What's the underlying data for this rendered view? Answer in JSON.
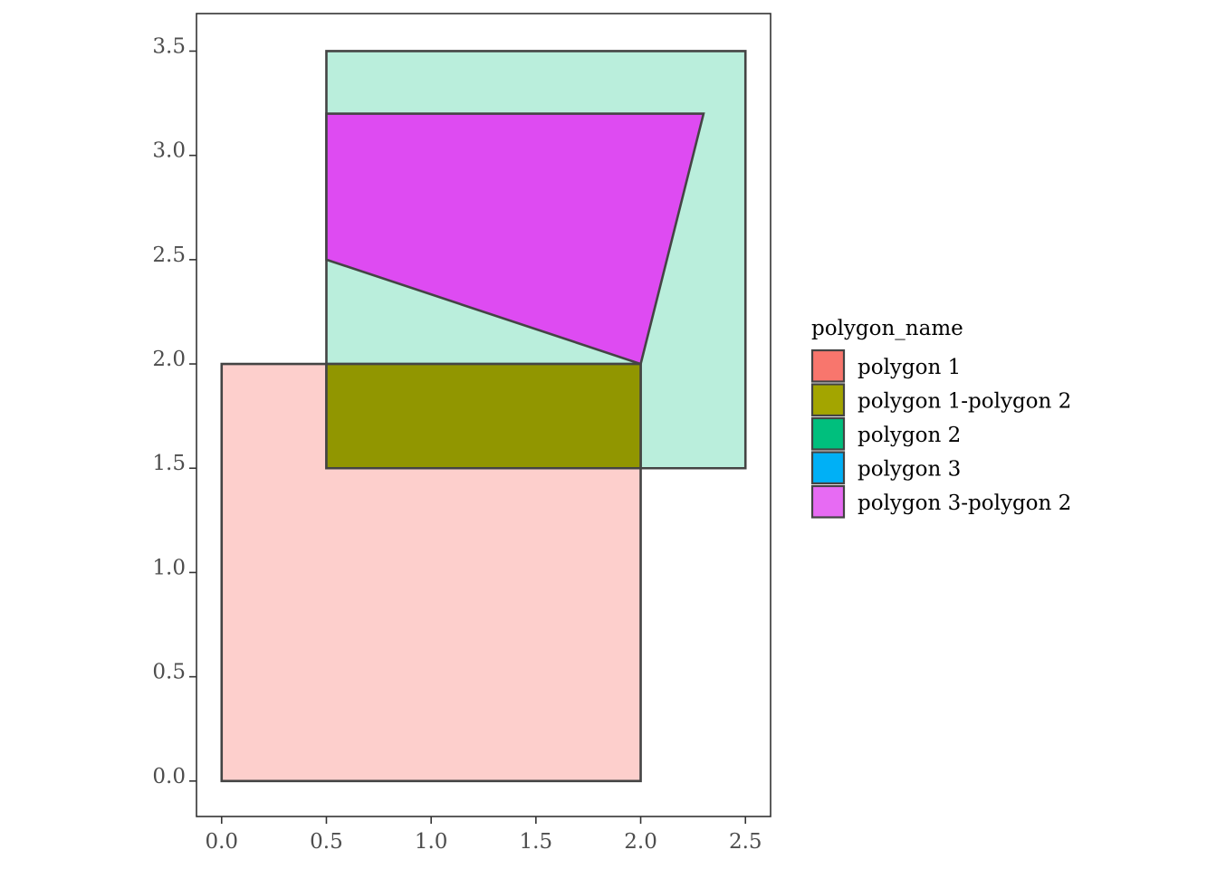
{
  "chart_data": {
    "type": "polygon-map",
    "title": "",
    "xlabel": "",
    "ylabel": "",
    "xlim": [
      -0.12,
      2.62
    ],
    "ylim": [
      -0.17,
      3.68
    ],
    "x_ticks": [
      0.0,
      0.5,
      1.0,
      1.5,
      2.0,
      2.5
    ],
    "x_tick_labels": [
      "0.0",
      "0.5",
      "1.0",
      "1.5",
      "2.0",
      "2.5"
    ],
    "y_ticks": [
      0.0,
      0.5,
      1.0,
      1.5,
      2.0,
      2.5,
      3.0,
      3.5
    ],
    "y_tick_labels": [
      "0.0",
      "0.5",
      "1.0",
      "1.5",
      "2.0",
      "2.5",
      "3.0",
      "3.5"
    ],
    "grid": false,
    "legend": {
      "title": "polygon_name",
      "placement": "right",
      "items": [
        {
          "label": "polygon 1",
          "color": "#F8766D"
        },
        {
          "label": "polygon 1-polygon 2",
          "color": "#A3A500"
        },
        {
          "label": "polygon 2",
          "color": "#00BF7D"
        },
        {
          "label": "polygon 3",
          "color": "#00B0F6"
        },
        {
          "label": "polygon 3-polygon 2",
          "color": "#E76BF3"
        }
      ]
    },
    "polygons": [
      {
        "name": "polygon 1",
        "fill": "#F8766D",
        "opacity": 0.35,
        "points": [
          [
            0,
            0
          ],
          [
            2,
            0
          ],
          [
            2,
            2
          ],
          [
            0,
            2
          ]
        ]
      },
      {
        "name": "polygon 2",
        "fill": "#00BF7D",
        "opacity": 0.27,
        "points": [
          [
            0.5,
            1.5
          ],
          [
            2.5,
            1.5
          ],
          [
            2.5,
            3.5
          ],
          [
            0.5,
            3.5
          ]
        ]
      },
      {
        "name": "polygon 1-polygon 2",
        "fill": "#919600",
        "opacity": 1,
        "points": [
          [
            0.5,
            1.5
          ],
          [
            2,
            1.5
          ],
          [
            2,
            2
          ],
          [
            0.5,
            2
          ]
        ]
      },
      {
        "name": "polygon 3-polygon 2",
        "fill": "#DE4BF2",
        "opacity": 1,
        "points": [
          [
            0.5,
            2.5
          ],
          [
            2,
            2
          ],
          [
            2.3,
            3.2
          ],
          [
            0.5,
            3.2
          ]
        ]
      }
    ],
    "outline_color": "#444444",
    "axis_color": "#333333"
  }
}
